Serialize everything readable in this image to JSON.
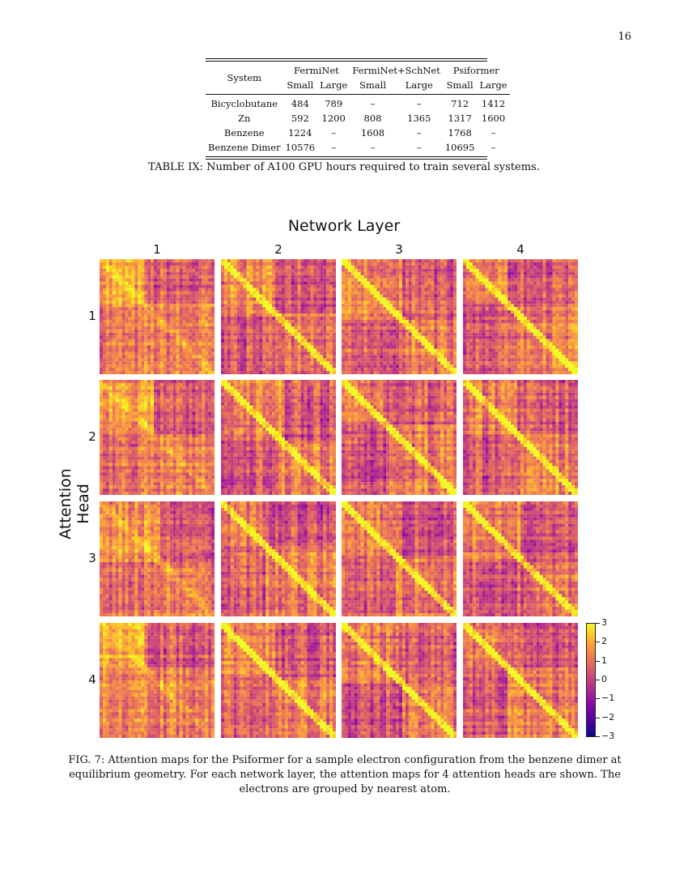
{
  "page_number": "16",
  "table": {
    "col_system": "System",
    "groups": [
      "FermiNet",
      "FermiNet+SchNet",
      "Psiformer"
    ],
    "subcols": [
      "Small",
      "Large",
      "Small",
      "Large",
      "Small",
      "Large"
    ],
    "rows": [
      {
        "system": "Bicyclobutane",
        "values": [
          "484",
          "789",
          "–",
          "–",
          "712",
          "1412"
        ]
      },
      {
        "system": "Zn",
        "values": [
          "592",
          "1200",
          "808",
          "1365",
          "1317",
          "1600"
        ]
      },
      {
        "system": "Benzene",
        "values": [
          "1224",
          "–",
          "1608",
          "–",
          "1768",
          "–"
        ]
      },
      {
        "system": "Benzene Dimer",
        "values": [
          "10576",
          "–",
          "–",
          "–",
          "10695",
          "–"
        ]
      }
    ],
    "caption": "TABLE IX: Number of A100 GPU hours required to train several systems."
  },
  "figure": {
    "title": "Network Layer",
    "y_title": "Attention Head",
    "layers": [
      "1",
      "2",
      "3",
      "4"
    ],
    "heads": [
      "1",
      "2",
      "3",
      "4"
    ],
    "colorbar_ticks": [
      "3",
      "2",
      "1",
      "0",
      "−1",
      "−2",
      "−3"
    ],
    "colorbar_range": [
      -3,
      3
    ],
    "caption": "FIG. 7: Attention maps for the Psiformer for a sample electron configuration from the benzene dimer at equilibrium geometry. For each network layer, the attention maps for 4 attention heads are shown. The electrons are grouped by nearest atom."
  },
  "colors": {
    "cmap_low": "#0d0887",
    "cmap_mid": "#b83289",
    "cmap_high": "#f0f921"
  }
}
